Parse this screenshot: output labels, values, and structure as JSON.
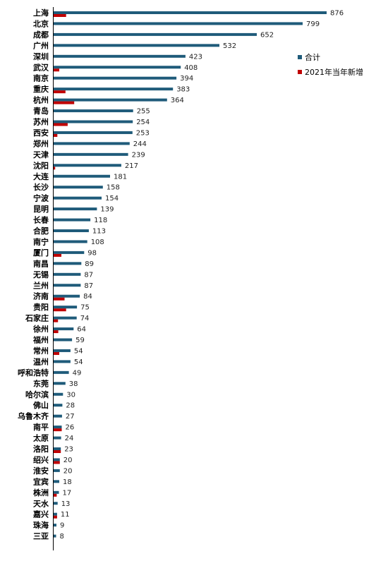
{
  "chart_data": {
    "type": "bar",
    "orientation": "horizontal",
    "categories": [
      "上海",
      "北京",
      "成都",
      "广州",
      "深圳",
      "武汉",
      "南京",
      "重庆",
      "杭州",
      "青岛",
      "苏州",
      "西安",
      "郑州",
      "天津",
      "沈阳",
      "大连",
      "长沙",
      "宁波",
      "昆明",
      "长春",
      "合肥",
      "南宁",
      "厦门",
      "南昌",
      "无锡",
      "兰州",
      "济南",
      "贵阳",
      "石家庄",
      "徐州",
      "福州",
      "常州",
      "温州",
      "呼和浩特",
      "东莞",
      "哈尔滨",
      "佛山",
      "乌鲁木齐",
      "南平",
      "太原",
      "洛阳",
      "绍兴",
      "淮安",
      "宜宾",
      "株洲",
      "天水",
      "嘉兴",
      "珠海",
      "三亚"
    ],
    "series": [
      {
        "name": "合计",
        "color": "#1f5b7a",
        "values": [
          876,
          799,
          652,
          532,
          423,
          408,
          394,
          383,
          364,
          255,
          254,
          253,
          244,
          239,
          217,
          181,
          158,
          154,
          139,
          118,
          113,
          108,
          98,
          89,
          87,
          87,
          84,
          75,
          74,
          64,
          59,
          54,
          54,
          49,
          38,
          30,
          28,
          27,
          26,
          24,
          23,
          20,
          20,
          18,
          17,
          13,
          11,
          9,
          8
        ]
      },
      {
        "name": "2021年当年新增",
        "color": "#c00000",
        "values": [
          40,
          0,
          0,
          0,
          0,
          18,
          0,
          38,
          66,
          0,
          45,
          12,
          0,
          0,
          5,
          0,
          0,
          0,
          0,
          0,
          0,
          0,
          25,
          0,
          0,
          0,
          35,
          40,
          14,
          15,
          0,
          18,
          0,
          0,
          0,
          0,
          0,
          0,
          26,
          0,
          23,
          20,
          0,
          0,
          10,
          0,
          11,
          0,
          0
        ]
      }
    ],
    "legend": {
      "position": "right",
      "entries": [
        "合计",
        "2021年当年新增"
      ]
    },
    "xlim": [
      0,
      876
    ],
    "grid": false
  }
}
